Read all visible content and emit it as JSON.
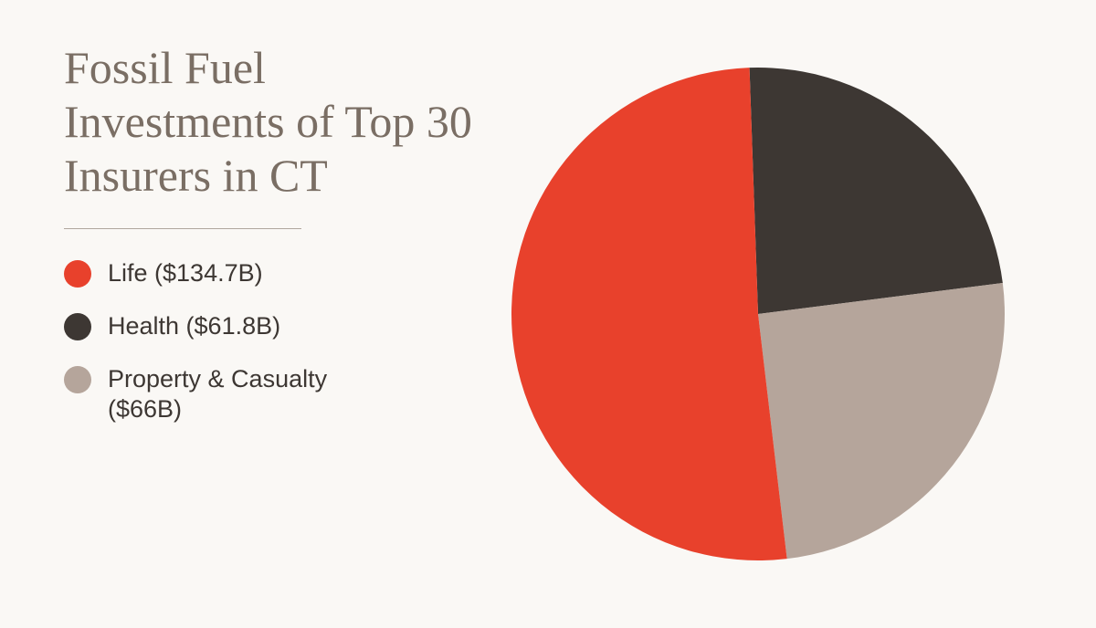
{
  "title": "Fossil Fuel Investments of Top 30 Insurers in CT",
  "background_color": "#faf8f5",
  "title_color": "#7a6e64",
  "title_fontsize": 50,
  "divider_color": "#b0a79e",
  "legend_text_color": "#3d3733",
  "legend_fontsize": 27,
  "chart": {
    "type": "pie",
    "diameter": 540,
    "start_angle_deg": -2,
    "slices": [
      {
        "name": "Life",
        "label": "Life ($134.7B)",
        "value": 134.7,
        "color": "#e8412c"
      },
      {
        "name": "Health",
        "label": "Health ($61.8B)",
        "value": 61.8,
        "color": "#3d3733"
      },
      {
        "name": "Property & Casualty",
        "label": "Property & Casualty ($66B)",
        "value": 66.0,
        "color": "#b5a59b"
      }
    ]
  }
}
